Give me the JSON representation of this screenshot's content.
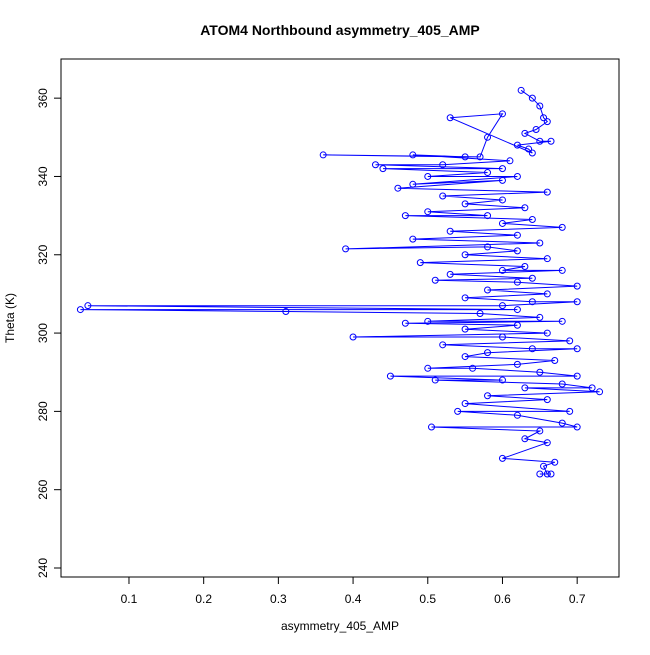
{
  "chart_data": {
    "type": "line",
    "markers": true,
    "title": "ATOM4 Northbound asymmetry_405_AMP",
    "x_label": "asymmetry_405_AMP",
    "y_label": "Theta (K)",
    "color": "#0000ff",
    "xlim": [
      0.009,
      0.756
    ],
    "ylim": [
      237.7,
      370
    ],
    "xticks": [
      0.1,
      0.2,
      0.3,
      0.4,
      0.5,
      0.6,
      0.7
    ],
    "yticks": [
      240,
      260,
      280,
      300,
      320,
      340,
      360
    ],
    "x": [
      0.625,
      0.64,
      0.65,
      0.655,
      0.66,
      0.645,
      0.63,
      0.65,
      0.665,
      0.62,
      0.635,
      0.64,
      0.53,
      0.6,
      0.58,
      0.57,
      0.36,
      0.55,
      0.48,
      0.61,
      0.52,
      0.43,
      0.6,
      0.44,
      0.58,
      0.5,
      0.62,
      0.48,
      0.6,
      0.46,
      0.66,
      0.52,
      0.6,
      0.55,
      0.63,
      0.5,
      0.58,
      0.47,
      0.64,
      0.6,
      0.68,
      0.53,
      0.62,
      0.48,
      0.65,
      0.39,
      0.58,
      0.62,
      0.55,
      0.66,
      0.49,
      0.63,
      0.6,
      0.68,
      0.53,
      0.64,
      0.51,
      0.62,
      0.7,
      0.58,
      0.66,
      0.55,
      0.64,
      0.7,
      0.6,
      0.045,
      0.62,
      0.035,
      0.31,
      0.57,
      0.65,
      0.5,
      0.68,
      0.47,
      0.62,
      0.55,
      0.66,
      0.4,
      0.6,
      0.69,
      0.52,
      0.64,
      0.7,
      0.58,
      0.55,
      0.67,
      0.62,
      0.5,
      0.56,
      0.65,
      0.7,
      0.45,
      0.6,
      0.51,
      0.68,
      0.72,
      0.63,
      0.73,
      0.58,
      0.66,
      0.55,
      0.69,
      0.54,
      0.62,
      0.68,
      0.7,
      0.505,
      0.65,
      0.63,
      0.66,
      0.6,
      0.67,
      0.655,
      0.66,
      0.665,
      0.65
    ],
    "y": [
      362,
      360,
      358,
      355,
      354,
      352,
      351,
      349,
      349,
      348,
      347,
      346,
      355,
      356,
      350,
      345,
      345.5,
      345,
      345.5,
      344,
      343,
      343,
      342,
      342,
      341,
      340,
      340,
      338,
      339,
      337,
      336,
      335,
      334,
      333,
      332,
      331,
      330,
      330,
      329,
      328,
      327,
      326,
      325,
      324,
      323,
      321.5,
      322,
      321,
      320,
      319,
      318,
      317,
      316,
      316,
      315,
      314,
      313.5,
      313,
      312,
      311,
      310,
      309,
      308,
      308,
      307,
      307,
      306,
      306,
      305.5,
      305,
      304,
      303,
      303,
      302.5,
      302,
      301,
      300,
      299,
      299,
      298,
      297,
      296,
      296,
      295,
      294,
      293,
      292,
      291,
      291,
      290,
      289,
      289,
      288,
      288,
      287,
      286,
      286,
      285,
      284,
      283,
      282,
      280,
      280,
      279,
      277,
      276,
      276,
      275,
      273,
      272,
      268,
      267,
      266,
      264,
      264,
      264
    ]
  }
}
